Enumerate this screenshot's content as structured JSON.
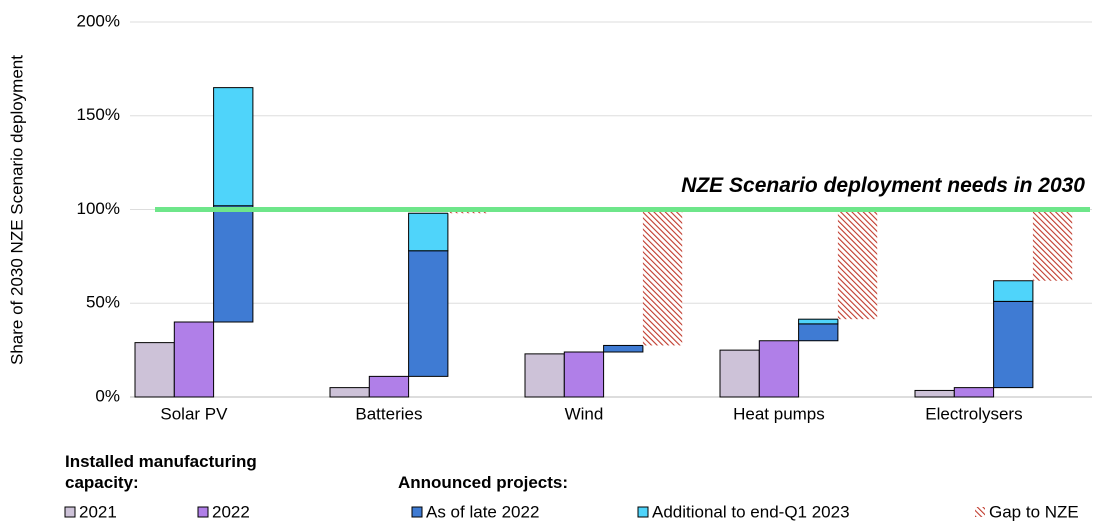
{
  "chart_data": {
    "type": "bar",
    "y_axis_label": "Share of 2030 NZE Scenario deployment",
    "categories": [
      "Solar PV",
      "Batteries",
      "Wind",
      "Heat pumps",
      "Electrolysers"
    ],
    "series": [
      {
        "name": "2021",
        "color": "#cdc2d8",
        "values": [
          29,
          5,
          23,
          25,
          3.5
        ]
      },
      {
        "name": "2022",
        "color": "#b07fe8",
        "values": [
          40,
          11,
          24,
          30,
          5
        ]
      },
      {
        "name": "As of late 2022",
        "color": "#3f7bd3",
        "values": [
          62,
          67,
          3.5,
          9,
          46
        ]
      },
      {
        "name": "Additional to end-Q1 2023",
        "color": "#4fd4fa",
        "values": [
          63,
          20,
          0,
          2.5,
          11
        ]
      },
      {
        "name": "Gap to NZE",
        "color": "#c0392b",
        "values": [
          null,
          2,
          72.5,
          58.5,
          38
        ]
      }
    ],
    "legend_groups": [
      "Installed manufacturing capacity:",
      "Announced projects:"
    ],
    "reference_line": {
      "value": 100,
      "label": "NZE Scenario deployment needs in 2030",
      "color": "#6ee68a"
    },
    "ylim": [
      0,
      200
    ],
    "yticks": [
      {
        "value": 0,
        "label": "0%"
      },
      {
        "value": 50,
        "label": "50%"
      },
      {
        "value": 100,
        "label": "100%"
      },
      {
        "value": 150,
        "label": "150%"
      },
      {
        "value": 200,
        "label": "200%"
      }
    ],
    "grid": true
  }
}
